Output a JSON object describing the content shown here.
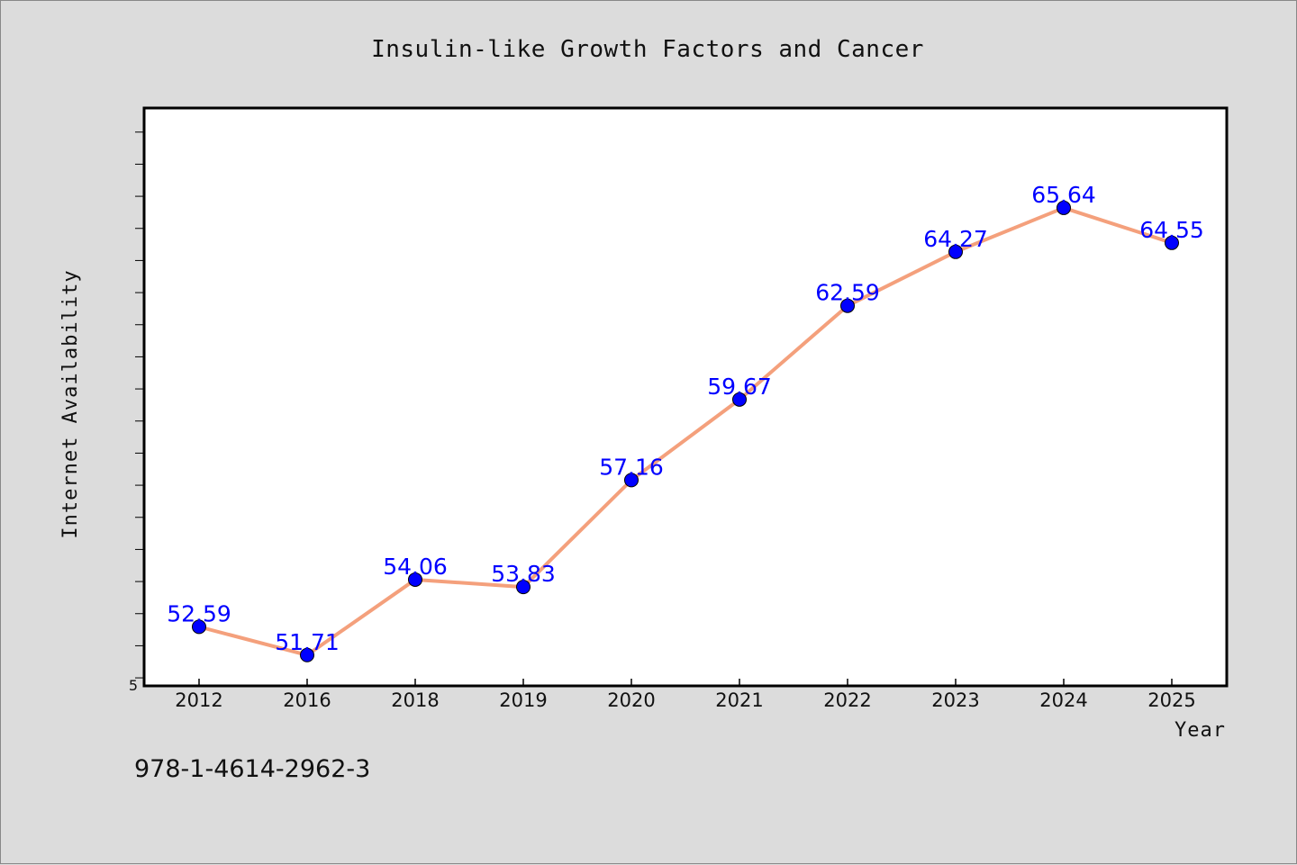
{
  "chart_data": {
    "type": "line",
    "title": "Insulin-like Growth Factors and Cancer",
    "xlabel": "Year",
    "ylabel": "Internet Availability",
    "categories": [
      "2012",
      "2016",
      "2018",
      "2019",
      "2020",
      "2021",
      "2022",
      "2023",
      "2024",
      "2025"
    ],
    "series": [
      {
        "values": [
          52.59,
          51.71,
          54.06,
          53.83,
          57.16,
          59.67,
          62.59,
          64.27,
          65.64,
          64.55
        ],
        "labels": [
          "52.59",
          "51.71",
          "54.06",
          "53.83",
          "57.16",
          "59.67",
          "62.59",
          "64.27",
          "65.64",
          "64.55"
        ],
        "line_color": "#f4a07c",
        "marker_color": "#0000ff"
      }
    ],
    "ylim": [
      50.75,
      68.75
    ],
    "y_tick_step": 1,
    "y_tick_label": "5",
    "grid": false,
    "legend": "none"
  },
  "footer_text": "978-1-4614-2962-3",
  "colors": {
    "background": "#dcdcdc",
    "plot_background": "#ffffff",
    "frame": "#000000",
    "line": "#f4a07c",
    "marker": "#0000ff",
    "data_label": "#0000ff"
  }
}
